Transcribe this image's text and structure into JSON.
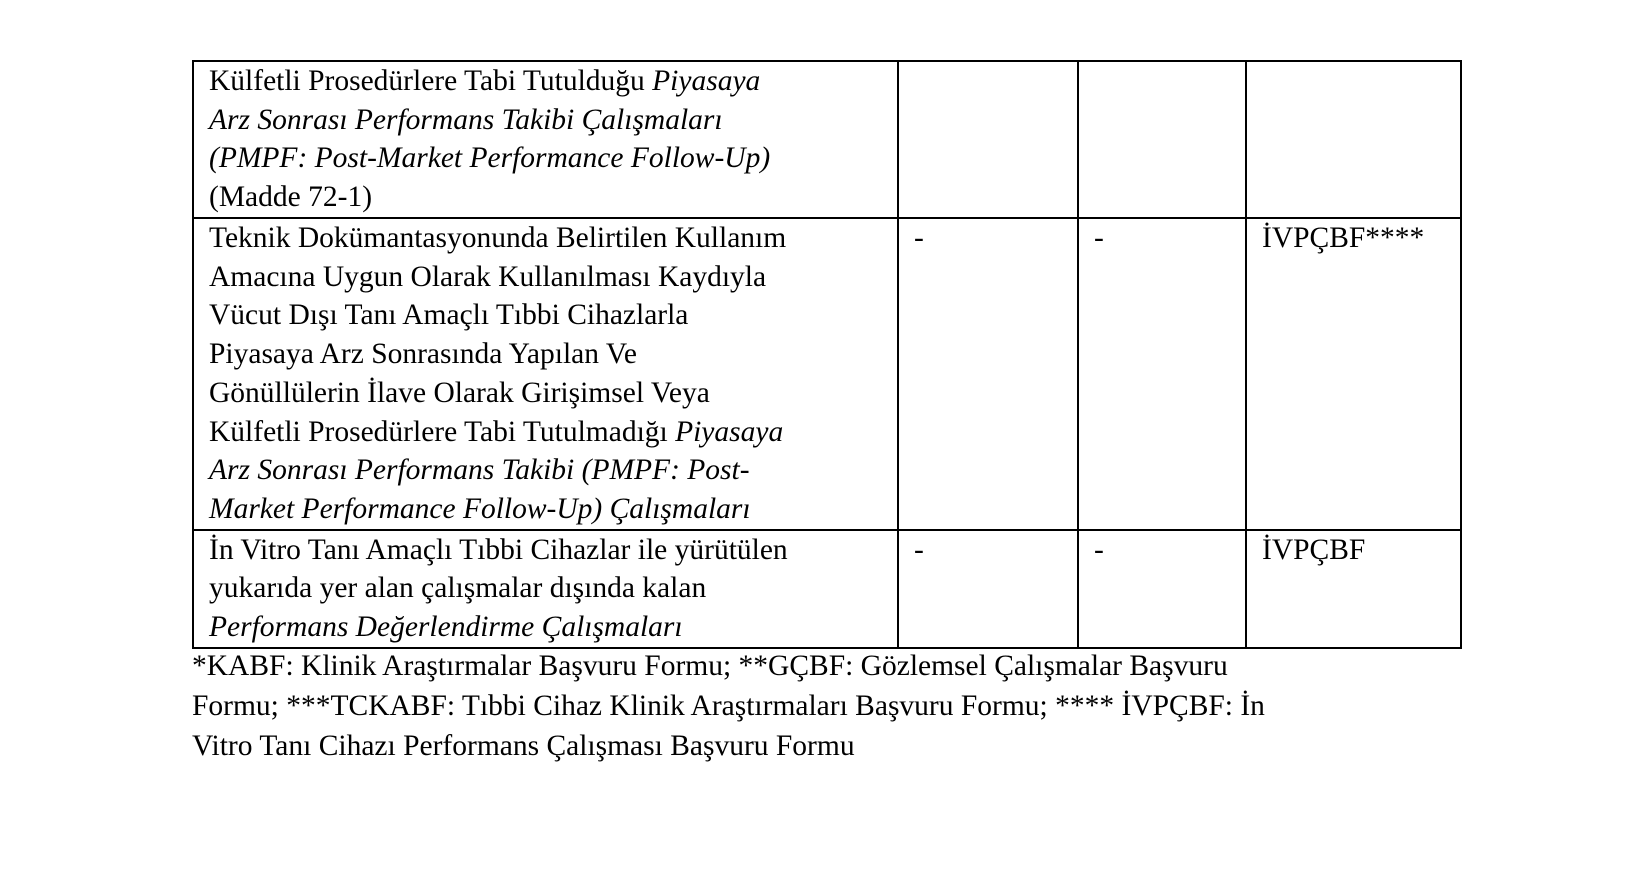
{
  "table": {
    "rows": [
      {
        "description": {
          "l1a": "Külfetli Prosedürlere Tabi Tutulduğu ",
          "l1b": "Piyasaya",
          "l2": "Arz Sonrası Performans Takibi Çalışmaları",
          "l3": "(PMPF: Post-Market Performance Follow-Up)",
          "l4": "(Madde 72-1)"
        },
        "col2": "",
        "col3": "",
        "col4": ""
      },
      {
        "description": {
          "l1": "Teknik Dokümantasyonunda Belirtilen Kullanım",
          "l2": "Amacına Uygun Olarak Kullanılması Kaydıyla",
          "l3": "Vücut Dışı Tanı Amaçlı Tıbbi Cihazlarla",
          "l4": "Piyasaya Arz Sonrasında Yapılan Ve",
          "l5": "Gönüllülerin İlave Olarak Girişimsel Veya",
          "l6a": "Külfetli Prosedürlere Tabi Tutulmadığı ",
          "l6b": "Piyasaya",
          "l7": "Arz Sonrası Performans Takibi (PMPF: Post-",
          "l8": "Market Performance Follow-Up) Çalışmaları"
        },
        "col2": "-",
        "col3": "-",
        "col4": "İVPÇBF****"
      },
      {
        "description": {
          "l1": "İn Vitro Tanı Amaçlı Tıbbi Cihazlar ile yürütülen",
          "l2": "yukarıda yer alan çalışmalar dışında kalan",
          "l3": "Performans Değerlendirme Çalışmaları"
        },
        "col2": "-",
        "col3": "-",
        "col4": "İVPÇBF"
      }
    ]
  },
  "footnote": {
    "l1": "*KABF: Klinik Araştırmalar Başvuru Formu; **GÇBF: Gözlemsel Çalışmalar Başvuru",
    "l2": "Formu; ***TCKABF: Tıbbi Cihaz Klinik Araştırmaları Başvuru Formu; **** İVPÇBF: İn",
    "l3": "Vitro Tanı Cihazı Performans Çalışması Başvuru Formu"
  }
}
